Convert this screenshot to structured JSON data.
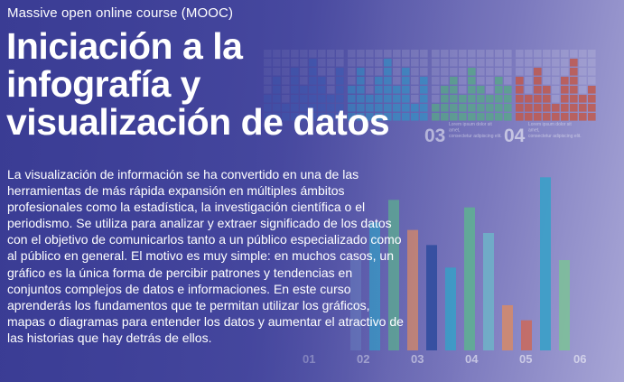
{
  "header": {
    "kicker": "Massive open online course (MOOC)",
    "title_lines": [
      "Iniciación a la",
      "infografía y",
      "visualización de datos"
    ]
  },
  "description": "La visualización de información se ha convertido en una de las herramientas de más rápida expansión en múltiples ámbitos profesionales como la estadística, la investigación científica o el periodismo. Se utiliza para analizar y extraer significado de los datos con el objetivo de comunicarlos tanto a un público especializado como al público en general. El motivo es muy simple: en muchos casos, un gráfico es la única forma de percibir patrones y tendencias en conjuntos complejos de datos e informaciones. En este curso aprenderás los fundamentos que te permitan utilizar los gráficos, mapas o diagramas para entender los datos y aumentar el atractivo de las historias que hay detrás de ellos.",
  "background_graphic": {
    "waffle_labels": [
      "03",
      "04"
    ],
    "waffle_captions": [
      "Lorem ipsum dolor sit amet, consectetur adipiscing elit.",
      "Lorem ipsum dolor sit amet, consectetur adipiscing elit."
    ],
    "waffle_colors": [
      "#3f63b8",
      "#3a8fc4",
      "#5aa58c",
      "#c0594e"
    ],
    "bar_values": [
      60,
      85,
      100,
      80,
      70,
      55,
      95,
      78,
      30,
      20,
      115,
      60
    ],
    "bar_colors": [
      "#6b7ec0",
      "#3aa0c8",
      "#5fae94",
      "#d18a6e",
      "#2f4d9e",
      "#3aa0c8",
      "#5fae94",
      "#6fb0c8",
      "#d18a6e",
      "#c86a5f",
      "#3aa0c8",
      "#7dbf9a"
    ],
    "axis_labels": [
      "01",
      "02",
      "03",
      "04",
      "05",
      "06"
    ],
    "accent_color": "#ffffff"
  }
}
